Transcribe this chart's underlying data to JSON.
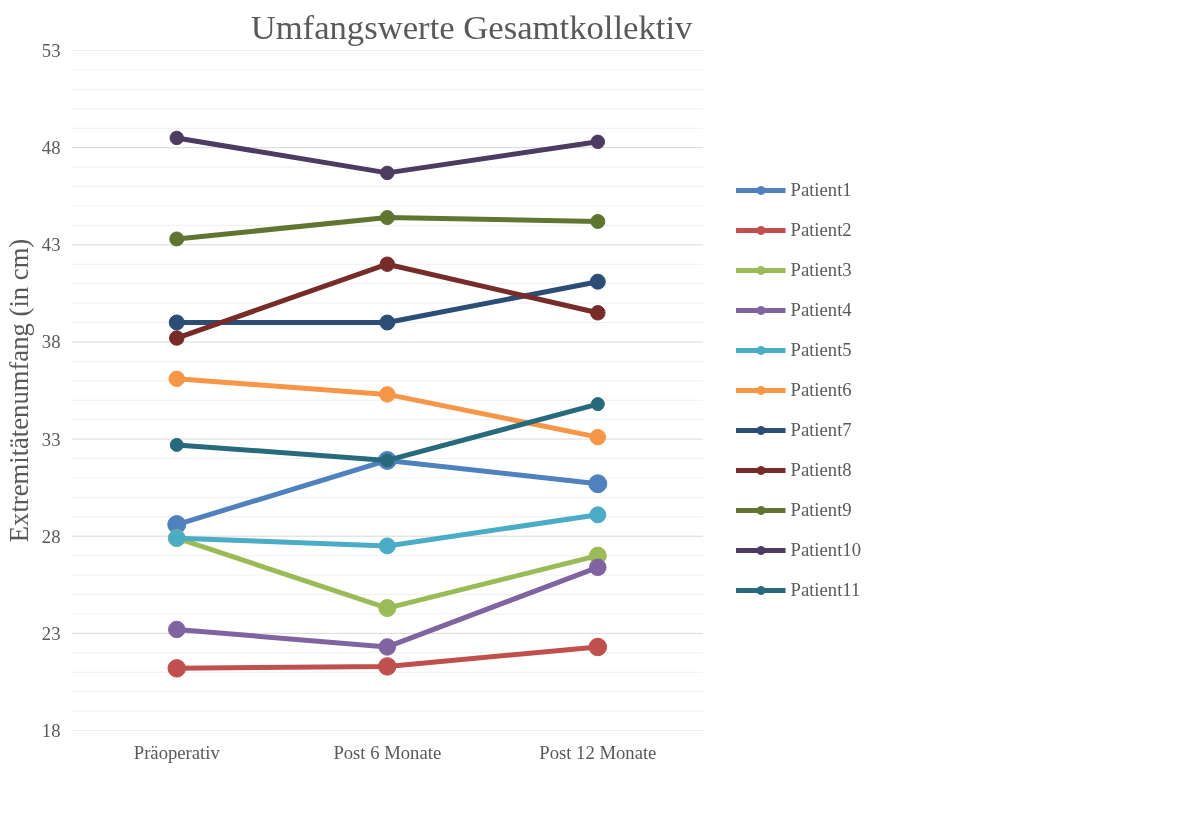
{
  "chart_data": {
    "type": "line",
    "title": "Umfangswerte Gesamtkollektiv",
    "ylabel": "Extremitätenumfang (in cm)",
    "categories": [
      "Präoperativ",
      "Post 6 Monate",
      "Post 12 Monate"
    ],
    "ylim": [
      18,
      53
    ],
    "yticks": [
      18,
      {
        "value": 19,
        "label": null
      },
      {
        "value": 20,
        "label": null
      },
      {
        "value": 21,
        "label": null
      },
      {
        "value": 22,
        "label": null
      },
      23,
      {
        "value": 24,
        "label": null
      },
      {
        "value": 25,
        "label": null
      },
      {
        "value": 26,
        "label": null
      },
      {
        "value": 27,
        "label": null
      },
      28,
      {
        "value": 29,
        "label": null
      },
      {
        "value": 30,
        "label": null
      },
      {
        "value": 31,
        "label": null
      },
      {
        "value": 32,
        "label": null
      },
      33,
      {
        "value": 34,
        "label": null
      },
      {
        "value": 35,
        "label": null
      },
      {
        "value": 36,
        "label": null
      },
      {
        "value": 37,
        "label": null
      },
      38,
      {
        "value": 39,
        "label": null
      },
      {
        "value": 40,
        "label": null
      },
      {
        "value": 41,
        "label": null
      },
      {
        "value": 42,
        "label": null
      },
      43,
      {
        "value": 44,
        "label": null
      },
      {
        "value": 45,
        "label": null
      },
      {
        "value": 46,
        "label": null
      },
      {
        "value": 47,
        "label": null
      },
      48,
      {
        "value": 49,
        "label": null
      },
      {
        "value": 50,
        "label": null
      },
      {
        "value": 51,
        "label": null
      },
      {
        "value": 52,
        "label": null
      },
      53
    ],
    "grid": "y",
    "legend": "right",
    "marker": "circle",
    "line_style": "solid",
    "series": [
      {
        "name": "Patient1",
        "color": "#4f81bd",
        "values": [
          28.6,
          31.9,
          30.7
        ]
      },
      {
        "name": "Patient2",
        "color": "#c0504d",
        "values": [
          21.2,
          21.3,
          22.3
        ]
      },
      {
        "name": "Patient3",
        "color": "#9bbb59",
        "values": [
          27.9,
          24.3,
          27.0
        ]
      },
      {
        "name": "Patient4",
        "color": "#8064a2",
        "values": [
          23.2,
          22.3,
          26.4
        ]
      },
      {
        "name": "Patient5",
        "color": "#4bacc6",
        "values": [
          27.9,
          27.5,
          29.1
        ]
      },
      {
        "name": "Patient6",
        "color": "#f79646",
        "values": [
          36.1,
          35.3,
          33.1
        ]
      },
      {
        "name": "Patient7",
        "color": "#2c4d75",
        "values": [
          39.0,
          39.0,
          41.1
        ]
      },
      {
        "name": "Patient8",
        "color": "#772c2a",
        "values": [
          38.2,
          42.0,
          39.5
        ]
      },
      {
        "name": "Patient9",
        "color": "#5f7530",
        "values": [
          43.3,
          44.4,
          44.2
        ]
      },
      {
        "name": "Patient10",
        "color": "#4d3b62",
        "values": [
          48.5,
          46.7,
          48.3
        ]
      },
      {
        "name": "Patient11",
        "color": "#276a7c",
        "values": [
          32.7,
          31.9,
          34.8
        ]
      }
    ]
  }
}
